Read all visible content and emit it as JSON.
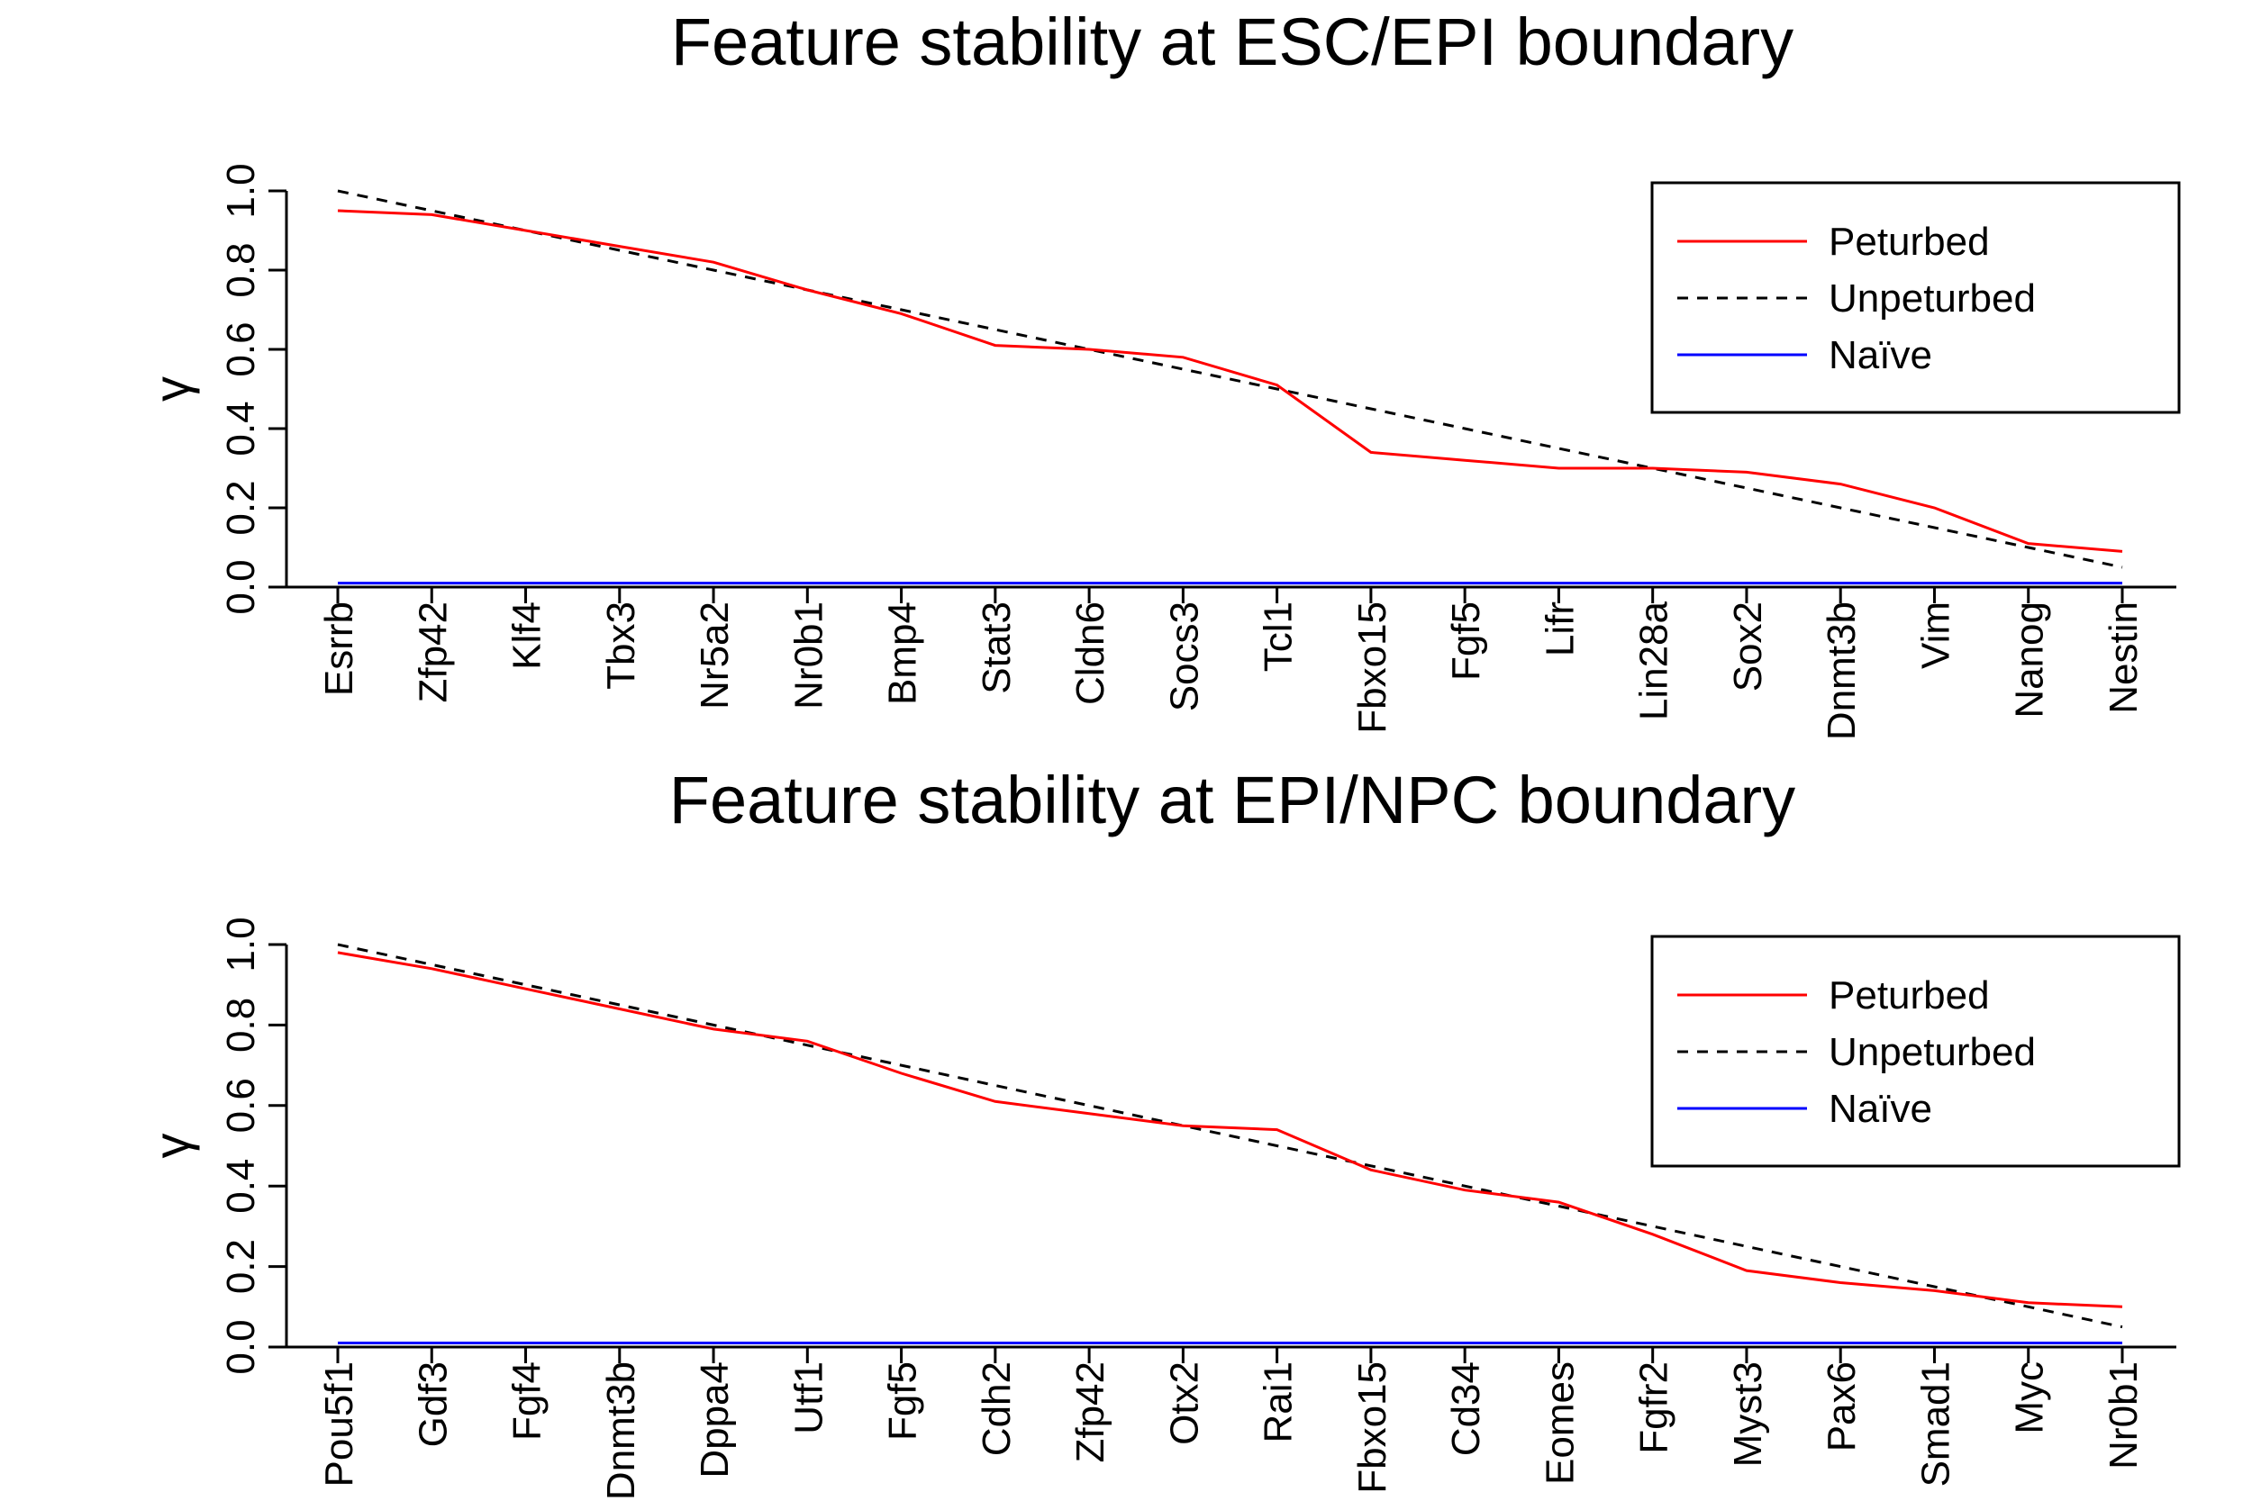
{
  "chart_data": [
    {
      "type": "line",
      "title": "Feature stability at ESC/EPI boundary",
      "xlabel": "",
      "ylabel": "γ",
      "ylim": [
        0,
        1
      ],
      "yticks": [
        "0.0",
        "0.2",
        "0.4",
        "0.6",
        "0.8",
        "1.0"
      ],
      "grid": false,
      "legend_position": "top-right",
      "categories": [
        "Esrrb",
        "Zfp42",
        "Klf4",
        "Tbx3",
        "Nr5a2",
        "Nr0b1",
        "Bmp4",
        "Stat3",
        "Cldn6",
        "Socs3",
        "Tcl1",
        "Fbxo15",
        "Fgf5",
        "Lifr",
        "Lin28a",
        "Sox2",
        "Dnmt3b",
        "Vim",
        "Nanog",
        "Nestin"
      ],
      "series": [
        {
          "name": "Peturbed",
          "color": "#ff0000",
          "dash": "solid",
          "values": [
            0.95,
            0.94,
            0.9,
            0.86,
            0.82,
            0.75,
            0.69,
            0.61,
            0.6,
            0.58,
            0.51,
            0.34,
            0.32,
            0.3,
            0.3,
            0.29,
            0.26,
            0.2,
            0.11,
            0.09
          ]
        },
        {
          "name": "Unpeturbed",
          "color": "#000000",
          "dash": "dashed",
          "values": [
            1.0,
            0.95,
            0.9,
            0.85,
            0.8,
            0.75,
            0.7,
            0.65,
            0.6,
            0.55,
            0.5,
            0.45,
            0.4,
            0.35,
            0.3,
            0.25,
            0.2,
            0.15,
            0.1,
            0.05
          ]
        },
        {
          "name": "Naïve",
          "color": "#0000ff",
          "dash": "solid",
          "values": [
            0.01,
            0.01,
            0.01,
            0.01,
            0.01,
            0.01,
            0.01,
            0.01,
            0.01,
            0.01,
            0.01,
            0.01,
            0.01,
            0.01,
            0.01,
            0.01,
            0.01,
            0.01,
            0.01,
            0.01
          ]
        }
      ]
    },
    {
      "type": "line",
      "title": "Feature stability at EPI/NPC boundary",
      "xlabel": "",
      "ylabel": "γ",
      "ylim": [
        0,
        1
      ],
      "yticks": [
        "0.0",
        "0.2",
        "0.4",
        "0.6",
        "0.8",
        "1.0"
      ],
      "grid": false,
      "legend_position": "top-right",
      "categories": [
        "Pou5f1",
        "Gdf3",
        "Fgf4",
        "Dnmt3b",
        "Dppa4",
        "Utf1",
        "Fgf5",
        "Cdh2",
        "Zfp42",
        "Otx2",
        "Rai1",
        "Fbxo15",
        "Cd34",
        "Eomes",
        "Fgfr2",
        "Myst3",
        "Pax6",
        "Smad1",
        "Myc",
        "Nr0b1"
      ],
      "series": [
        {
          "name": "Peturbed",
          "color": "#ff0000",
          "dash": "solid",
          "values": [
            0.98,
            0.94,
            0.89,
            0.84,
            0.79,
            0.76,
            0.68,
            0.61,
            0.58,
            0.55,
            0.54,
            0.44,
            0.39,
            0.36,
            0.28,
            0.19,
            0.16,
            0.14,
            0.11,
            0.1
          ]
        },
        {
          "name": "Unpeturbed",
          "color": "#000000",
          "dash": "dashed",
          "values": [
            1.0,
            0.95,
            0.9,
            0.85,
            0.8,
            0.75,
            0.7,
            0.65,
            0.6,
            0.55,
            0.5,
            0.45,
            0.4,
            0.35,
            0.3,
            0.25,
            0.2,
            0.15,
            0.1,
            0.05
          ]
        },
        {
          "name": "Naïve",
          "color": "#0000ff",
          "dash": "solid",
          "values": [
            0.01,
            0.01,
            0.01,
            0.01,
            0.01,
            0.01,
            0.01,
            0.01,
            0.01,
            0.01,
            0.01,
            0.01,
            0.01,
            0.01,
            0.01,
            0.01,
            0.01,
            0.01,
            0.01,
            0.01
          ]
        }
      ]
    }
  ]
}
